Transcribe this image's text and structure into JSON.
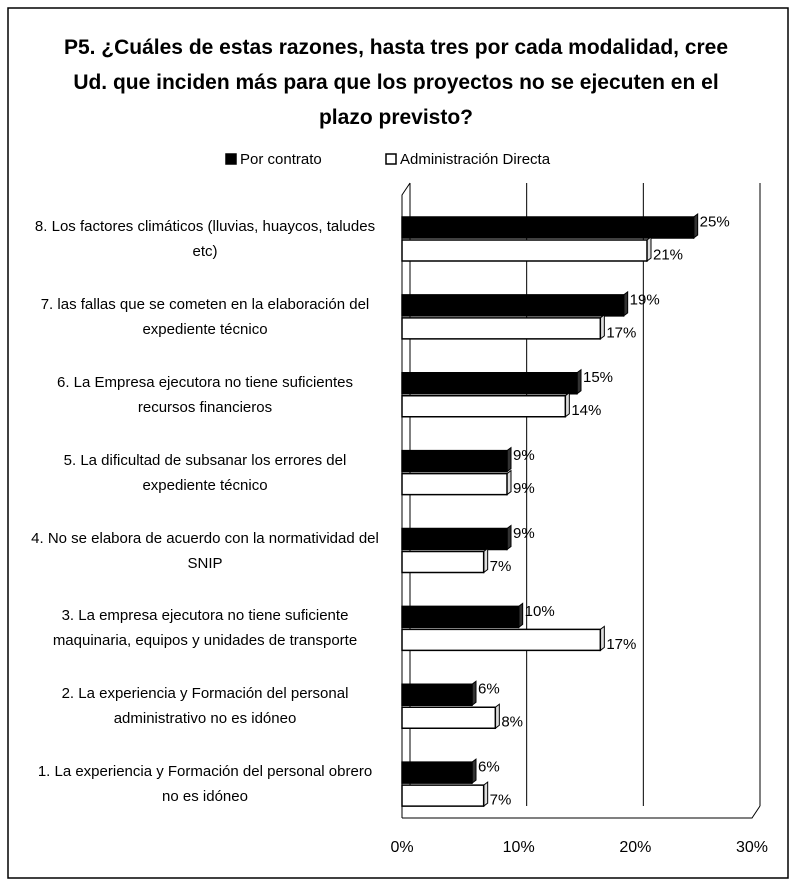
{
  "chart_data": {
    "type": "barh",
    "title": "P5. ¿Cuáles de estas razones, hasta tres por cada modalidad, cree Ud. que inciden más para que los proyectos no se ejecuten en el plazo previsto?",
    "categories": [
      "8. Los factores climáticos (lluvias, huaycos, taludes etc)",
      "7. las fallas que se cometen en la elaboración del expediente técnico",
      "6. La Empresa ejecutora no tiene suficientes recursos financieros",
      "5. La dificultad de subsanar los errores del expediente técnico",
      "4. No se elabora de acuerdo con la normatividad del SNIP",
      "3. La empresa ejecutora no tiene suficiente maquinaria, equipos y unidades de transporte",
      "2. La experiencia y Formación del personal administrativo no es idóneo",
      "1. La experiencia y Formación del personal obrero no es idóneo"
    ],
    "series": [
      {
        "name": "Por contrato",
        "color": "#000000",
        "values": [
          25,
          19,
          15,
          9,
          9,
          10,
          6,
          6
        ],
        "value_labels": [
          "25%",
          "19%",
          "15%",
          "9%",
          "9%",
          "10%",
          "6%",
          "6%"
        ]
      },
      {
        "name": "Administración Directa",
        "color": "#ffffff",
        "values": [
          21,
          17,
          14,
          9,
          7,
          17,
          8,
          7
        ],
        "value_labels": [
          "21%",
          "17%",
          "14%",
          "9%",
          "7%",
          "17%",
          "8%",
          "7%"
        ]
      }
    ],
    "xlim": [
      0,
      30
    ],
    "xticks": [
      {
        "value": 0,
        "label": "0%"
      },
      {
        "value": 10,
        "label": "10%"
      },
      {
        "value": 20,
        "label": "20%"
      },
      {
        "value": 30,
        "label": "30%"
      }
    ],
    "grid": true,
    "legend": "top"
  }
}
